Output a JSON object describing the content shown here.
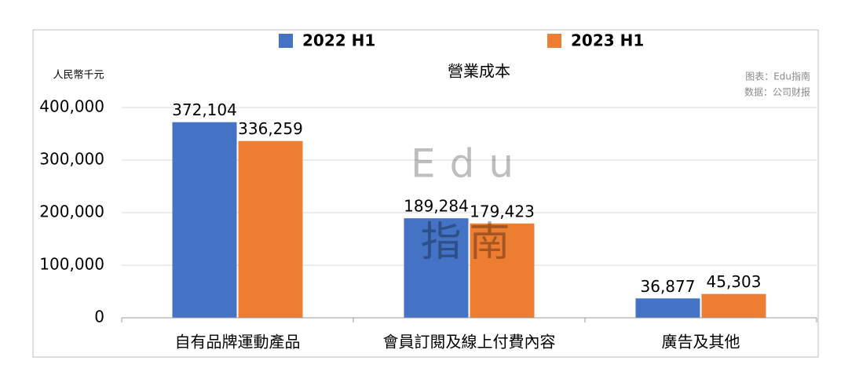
{
  "chart_data": {
    "type": "bar",
    "title": "營業成本",
    "y_label": "人民幣千元",
    "notes": [
      "图表：Edu指南",
      "数据：公司财报"
    ],
    "watermark": [
      "Edu",
      "指南"
    ],
    "categories": [
      "自有品牌運動產品",
      "會員訂閱及線上付費內容",
      "廣告及其他"
    ],
    "series": [
      {
        "name": "2022 H1",
        "color": "#4472c4",
        "values": [
          372104,
          189284,
          36877
        ],
        "value_labels": [
          "372,104",
          "189,284",
          "36,877"
        ]
      },
      {
        "name": "2023 H1",
        "color": "#ed7d31",
        "values": [
          336259,
          179423,
          45303
        ],
        "value_labels": [
          "336,259",
          "179,423",
          "45,303"
        ]
      }
    ],
    "ylim": [
      0,
      400000
    ],
    "yticks": [
      0,
      {
        "value": 100000,
        "label": "100,000"
      },
      {
        "value": 200000,
        "label": "200,000"
      },
      {
        "value": 300000,
        "label": "300,000"
      },
      {
        "value": 400000,
        "label": "400,000"
      }
    ],
    "grid": true,
    "legend": "top"
  }
}
